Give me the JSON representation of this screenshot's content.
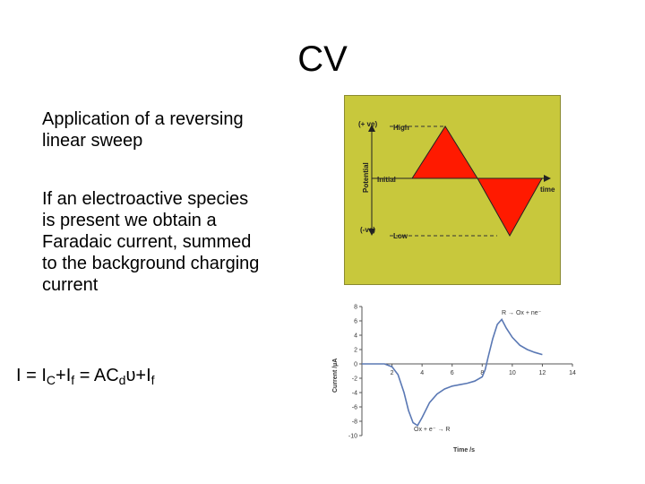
{
  "slide": {
    "title": "CV",
    "paragraph1": "Application of a reversing linear sweep",
    "paragraph2": "If an electroactive species is present we obtain a Faradaic current, summed to the background charging current",
    "formula": {
      "I": "I = I",
      "sub_C": "C",
      "plus1": "+I",
      "sub_f1": "f",
      "eq2": " = AC",
      "sub_d": "d",
      "upsilon": "υ",
      "plus2": "+I",
      "sub_f2": "f"
    }
  },
  "potential_diagram": {
    "background": "#c8c83c",
    "fill": "#ff1a00",
    "labels": {
      "plus_ve": "(+ ve)",
      "minus_ve": "(-ve)",
      "potential": "Potential",
      "high": "High",
      "initial": "Initial",
      "low": "Low",
      "time": "time"
    }
  },
  "chart_data": {
    "type": "line",
    "xlabel": "Time /s",
    "ylabel": "Current /µA",
    "xlim": [
      0,
      14
    ],
    "ylim": [
      -10,
      8
    ],
    "xticks": [
      2,
      4,
      6,
      8,
      10,
      12,
      14
    ],
    "yticks": [
      8,
      6,
      4,
      2,
      0,
      -2,
      -4,
      -6,
      -8,
      -10
    ],
    "annotations": [
      "R → Ox + ne⁻",
      "Ox + e⁻ → R"
    ],
    "series": [
      {
        "color": "#5a78b4",
        "x": [
          0,
          1.5,
          2.0,
          2.4,
          2.8,
          3.1,
          3.4,
          3.7,
          4.0,
          4.5,
          5.0,
          5.5,
          6.0,
          6.5,
          7.0,
          7.5,
          8.0,
          8.2,
          8.4,
          8.7,
          9.0,
          9.3,
          9.6,
          10.0,
          10.5,
          11.0,
          11.5,
          12.0
        ],
        "y": [
          0,
          0,
          -0.4,
          -1.5,
          -4.0,
          -6.5,
          -8.2,
          -8.6,
          -7.5,
          -5.4,
          -4.2,
          -3.5,
          -3.1,
          -2.9,
          -2.7,
          -2.4,
          -1.8,
          -0.8,
          1.0,
          3.5,
          5.5,
          6.2,
          5.0,
          3.7,
          2.6,
          2.0,
          1.6,
          1.3
        ]
      }
    ]
  }
}
